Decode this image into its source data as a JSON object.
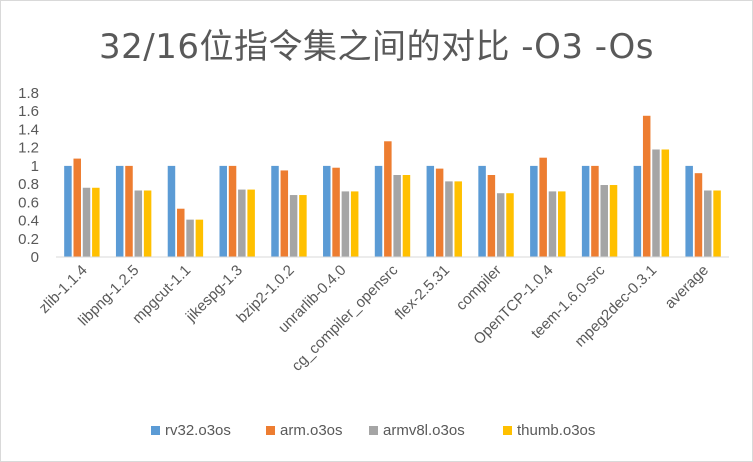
{
  "chart_data": {
    "type": "bar",
    "title": "32/16位指令集之间的对比 -O3 -Os",
    "xlabel": "",
    "ylabel": "",
    "ylim": [
      0,
      1.8
    ],
    "ytick_step": 0.2,
    "yticks": [
      "0",
      "0.2",
      "0.4",
      "0.6",
      "0.8",
      "1",
      "1.2",
      "1.4",
      "1.6",
      "1.8"
    ],
    "grid": false,
    "legend_position": "bottom",
    "categories": [
      "zlib-1.1.4",
      "libpng-1.2.5",
      "mpgcut-1.1",
      "jikespg-1.3",
      "bzip2-1.0.2",
      "unrarlib-0.4.0",
      "cg_compiler_opensrc",
      "flex-2.5.31",
      "compiler",
      "OpenTCP-1.0.4",
      "teem-1.6.0-src",
      "mpeg2dec-0.3.1",
      "average"
    ],
    "series": [
      {
        "name": "rv32.o3os",
        "color": "#5b9bd5",
        "values": [
          1,
          1,
          1,
          1,
          1,
          1,
          1,
          1,
          1,
          1,
          1,
          1,
          1
        ]
      },
      {
        "name": "arm.o3os",
        "color": "#ed7d31",
        "values": [
          1.08,
          1.0,
          0.53,
          1.0,
          0.95,
          0.98,
          1.27,
          0.97,
          0.9,
          1.09,
          1.0,
          1.55,
          0.92
        ]
      },
      {
        "name": "armv8l.o3os",
        "color": "#a5a5a5",
        "values": [
          0.76,
          0.73,
          0.41,
          0.74,
          0.68,
          0.72,
          0.9,
          0.83,
          0.7,
          0.72,
          0.79,
          1.18,
          0.73
        ]
      },
      {
        "name": "thumb.o3os",
        "color": "#ffc000",
        "values": [
          0.76,
          0.73,
          0.41,
          0.74,
          0.68,
          0.72,
          0.9,
          0.83,
          0.7,
          0.72,
          0.79,
          1.18,
          0.73
        ]
      }
    ]
  }
}
